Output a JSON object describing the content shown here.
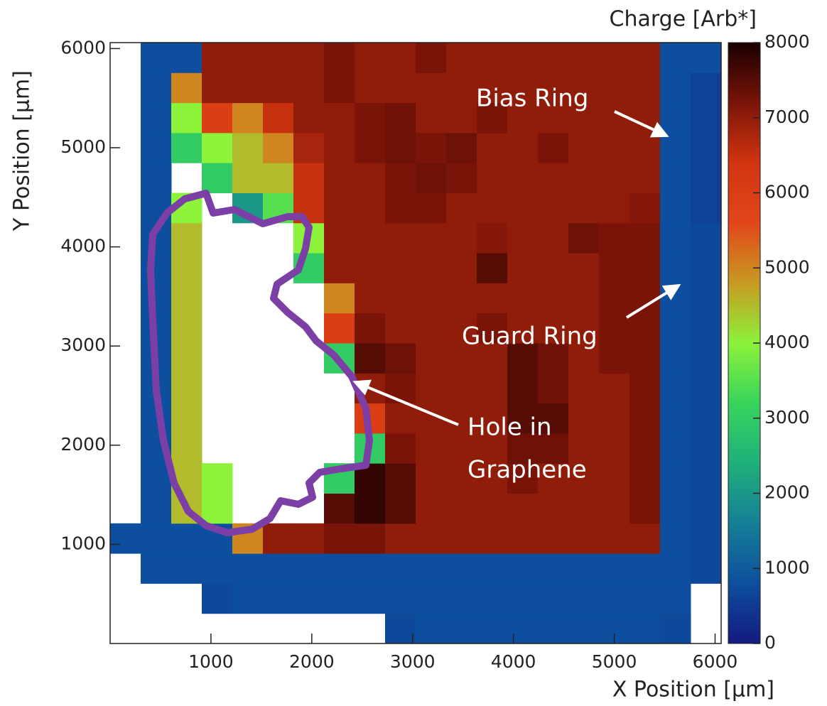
{
  "chart_data": {
    "type": "heatmap",
    "colorbar_title": "Charge [Arb*]",
    "x_label": "X Position [µm]",
    "y_label": "Y Position [µm]",
    "annotations": {
      "bias_ring": "Bias Ring",
      "guard_ring": "Guard Ring",
      "hole": [
        "Hole in",
        "Graphene"
      ]
    },
    "xlim": [
      0,
      6060
    ],
    "ylim": [
      0,
      6060
    ],
    "xticks": [
      1000,
      2000,
      3000,
      4000,
      5000,
      6000
    ],
    "yticks": [
      1000,
      2000,
      3000,
      4000,
      5000,
      6000
    ],
    "zlim": [
      0,
      8000
    ],
    "zticks": [
      0,
      1000,
      2000,
      3000,
      4000,
      5000,
      6000,
      7000,
      8000
    ],
    "colorscale": [
      "#141a80",
      "#0d4f9e",
      "#167f96",
      "#1fb07a",
      "#38d45c",
      "#8cf23a",
      "#c89a22",
      "#e2461a",
      "#d23510",
      "#7a1408",
      "#1a0000"
    ],
    "xbins": [
      0,
      303,
      606,
      909,
      1212,
      1515,
      1818,
      2121,
      2424,
      2727,
      3030,
      3333,
      3636,
      3939,
      4242,
      4545,
      4848,
      5151,
      5454,
      5757,
      6060
    ],
    "ybins": [
      0,
      303,
      606,
      909,
      1212,
      1515,
      1818,
      2121,
      2424,
      2727,
      3030,
      3333,
      3636,
      3939,
      4242,
      4545,
      4848,
      5151,
      5454,
      5757,
      6060
    ],
    "z": [
      [
        null,
        null,
        null,
        null,
        null,
        null,
        null,
        null,
        null,
        700,
        800,
        800,
        800,
        800,
        800,
        800,
        800,
        800,
        700,
        null
      ],
      [
        null,
        null,
        null,
        700,
        800,
        800,
        800,
        800,
        800,
        800,
        800,
        800,
        800,
        800,
        800,
        800,
        800,
        800,
        800,
        null
      ],
      [
        null,
        800,
        800,
        800,
        800,
        800,
        800,
        800,
        800,
        800,
        800,
        800,
        800,
        800,
        800,
        800,
        800,
        800,
        800,
        700
      ],
      [
        800,
        800,
        800,
        800,
        5000,
        7000,
        7000,
        7200,
        7200,
        7000,
        7000,
        7000,
        7000,
        7000,
        7000,
        7000,
        7000,
        7000,
        800,
        700
      ],
      [
        null,
        800,
        4500,
        4000,
        null,
        null,
        null,
        7500,
        7800,
        7500,
        7000,
        7000,
        7000,
        7000,
        7000,
        7000,
        7000,
        7200,
        800,
        700
      ],
      [
        null,
        800,
        4500,
        4000,
        null,
        null,
        null,
        3000,
        7800,
        7500,
        7000,
        7000,
        7000,
        7200,
        7000,
        7000,
        7000,
        7200,
        800,
        700
      ],
      [
        null,
        800,
        4500,
        null,
        null,
        null,
        null,
        null,
        3000,
        7200,
        7000,
        7000,
        7000,
        7300,
        7300,
        7000,
        7000,
        7200,
        800,
        700
      ],
      [
        null,
        800,
        4500,
        null,
        null,
        null,
        null,
        null,
        6000,
        7000,
        7000,
        7000,
        7000,
        7500,
        7500,
        7000,
        7000,
        7200,
        800,
        700
      ],
      [
        null,
        800,
        4500,
        null,
        null,
        null,
        null,
        null,
        7000,
        7200,
        7000,
        7000,
        7000,
        7500,
        7300,
        7000,
        7000,
        7200,
        800,
        700
      ],
      [
        null,
        800,
        4500,
        null,
        null,
        null,
        null,
        3000,
        7500,
        7300,
        7000,
        7000,
        7000,
        7500,
        7300,
        7000,
        7200,
        7200,
        800,
        700
      ],
      [
        null,
        800,
        4500,
        null,
        null,
        null,
        null,
        6000,
        7200,
        7000,
        7000,
        7000,
        7200,
        7000,
        7000,
        7000,
        7200,
        7200,
        800,
        700
      ],
      [
        null,
        800,
        4500,
        null,
        null,
        null,
        null,
        5000,
        7000,
        7000,
        7000,
        7000,
        7000,
        7000,
        7000,
        7000,
        7200,
        7200,
        800,
        700
      ],
      [
        null,
        800,
        4500,
        null,
        null,
        null,
        3000,
        7000,
        7000,
        7000,
        7000,
        7000,
        7500,
        7000,
        7000,
        7000,
        7200,
        7200,
        800,
        700
      ],
      [
        null,
        800,
        4500,
        null,
        null,
        null,
        4000,
        7000,
        7000,
        7000,
        7000,
        7000,
        7100,
        7000,
        7000,
        7300,
        7200,
        7200,
        800,
        700
      ],
      [
        null,
        800,
        4000,
        null,
        2000,
        3500,
        6500,
        7000,
        7000,
        7200,
        7200,
        7000,
        7000,
        7000,
        7000,
        7000,
        7000,
        7100,
        800,
        600
      ],
      [
        null,
        800,
        null,
        3000,
        4500,
        4500,
        6500,
        7000,
        7000,
        7200,
        7300,
        7200,
        7000,
        7000,
        7000,
        7000,
        7000,
        7000,
        800,
        600
      ],
      [
        null,
        800,
        3000,
        4000,
        4500,
        5000,
        6800,
        7000,
        7200,
        7300,
        7200,
        7300,
        7000,
        7000,
        7200,
        7000,
        7000,
        7000,
        800,
        600
      ],
      [
        null,
        800,
        4000,
        6000,
        5000,
        6500,
        7000,
        7000,
        7200,
        7300,
        7000,
        7000,
        7200,
        7000,
        7000,
        7000,
        7000,
        7000,
        800,
        600
      ],
      [
        null,
        800,
        5000,
        7000,
        7000,
        7000,
        7000,
        7200,
        7000,
        7000,
        7000,
        7000,
        7000,
        7000,
        7000,
        7000,
        7000,
        7000,
        800,
        600
      ],
      [
        null,
        800,
        800,
        7000,
        7000,
        7000,
        7000,
        7200,
        7000,
        7000,
        7200,
        7000,
        7000,
        7000,
        7000,
        7000,
        7000,
        7000,
        800,
        800
      ]
    ]
  }
}
